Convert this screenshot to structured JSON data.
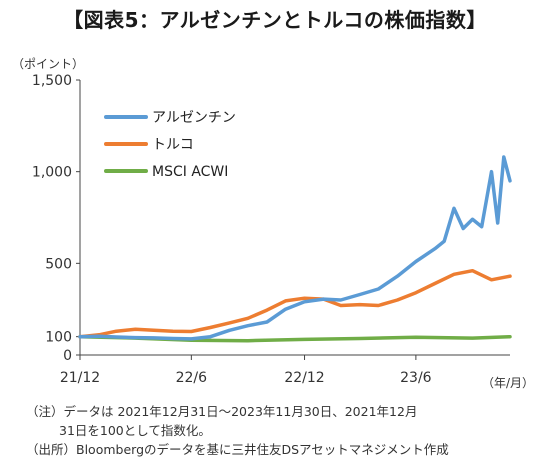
{
  "title": "【図表5：アルゼンチンとトルコの株価指数】",
  "y_unit": "（ポイント）",
  "x_unit": "（年/月）",
  "notes": {
    "line1": "（注）データは 2021年12月31日～2023年11月30日、2021年12月",
    "line2": "31日を100として指数化。",
    "line3": "（出所）Bloombergのデータを基に三井住友DSアセットマネジメント作成"
  },
  "colors": {
    "argentina": "#5B9BD5",
    "turkey": "#ED7D31",
    "msci": "#70AD47",
    "axis": "#444444"
  },
  "chart_data": {
    "type": "line",
    "title": "アルゼンチンとトルコの株価指数",
    "ylabel": "（ポイント）",
    "xlabel": "（年/月）",
    "ylim": [
      0,
      1500
    ],
    "yticks": [
      "1,500",
      "1,000",
      "500",
      "100",
      "0"
    ],
    "ytick_values": [
      1500,
      1000,
      500,
      100,
      0
    ],
    "xticks": [
      "21/12",
      "22/6",
      "22/12",
      "23/6"
    ],
    "xtick_values": [
      "2021-12-31",
      "2022-06-30",
      "2022-12-31",
      "2023-06-30"
    ],
    "xlim": [
      "2021-12-31",
      "2023-11-30"
    ],
    "legend_position": "top-left",
    "series": [
      {
        "name": "アルゼンチン",
        "color": "#5B9BD5",
        "x": [
          "2021-12-31",
          "2022-01-31",
          "2022-02-28",
          "2022-03-31",
          "2022-04-30",
          "2022-05-31",
          "2022-06-30",
          "2022-07-31",
          "2022-08-31",
          "2022-09-30",
          "2022-10-31",
          "2022-11-30",
          "2022-12-31",
          "2023-01-31",
          "2023-02-28",
          "2023-03-31",
          "2023-04-30",
          "2023-05-31",
          "2023-06-30",
          "2023-07-31",
          "2023-08-15",
          "2023-08-31",
          "2023-09-15",
          "2023-09-30",
          "2023-10-15",
          "2023-10-31",
          "2023-11-10",
          "2023-11-20",
          "2023-11-30"
        ],
        "values": [
          100,
          102,
          98,
          95,
          93,
          90,
          88,
          100,
          135,
          160,
          180,
          250,
          290,
          305,
          300,
          330,
          360,
          430,
          510,
          580,
          620,
          800,
          690,
          740,
          700,
          1000,
          720,
          1080,
          950
        ]
      },
      {
        "name": "トルコ",
        "color": "#ED7D31",
        "x": [
          "2021-12-31",
          "2022-01-31",
          "2022-02-28",
          "2022-03-31",
          "2022-04-30",
          "2022-05-31",
          "2022-06-30",
          "2022-07-31",
          "2022-08-31",
          "2022-09-30",
          "2022-10-31",
          "2022-11-30",
          "2022-12-31",
          "2023-01-31",
          "2023-02-28",
          "2023-03-31",
          "2023-04-30",
          "2023-05-31",
          "2023-06-30",
          "2023-07-31",
          "2023-08-31",
          "2023-09-30",
          "2023-10-31",
          "2023-11-30"
        ],
        "values": [
          100,
          110,
          130,
          140,
          135,
          130,
          128,
          150,
          175,
          200,
          245,
          295,
          310,
          305,
          270,
          275,
          270,
          300,
          340,
          390,
          440,
          460,
          410,
          430
        ]
      },
      {
        "name": "MSCI ACWI",
        "color": "#70AD47",
        "x": [
          "2021-12-31",
          "2022-03-31",
          "2022-06-30",
          "2022-09-30",
          "2022-12-31",
          "2023-03-31",
          "2023-06-30",
          "2023-09-30",
          "2023-11-30"
        ],
        "values": [
          100,
          92,
          80,
          78,
          85,
          90,
          97,
          92,
          100
        ]
      }
    ]
  }
}
